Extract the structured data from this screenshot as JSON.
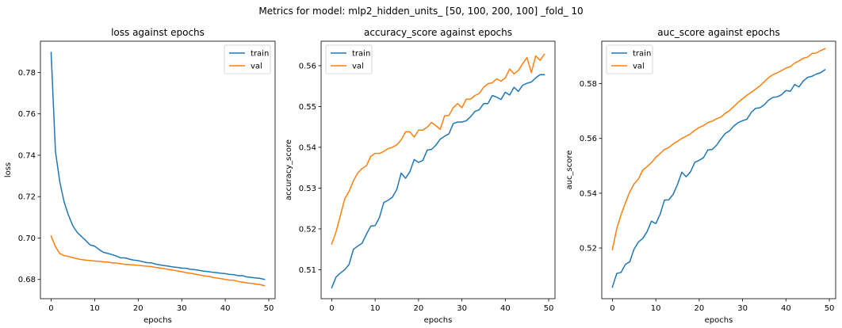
{
  "figure_title": "Metrics for model: mlp2_hidden_units_ [50, 100, 200, 100] _fold_ 10",
  "colors": {
    "train": "#1f77b4",
    "val": "#ff7f0e"
  },
  "chart_data": [
    {
      "type": "line",
      "title": "loss against epochs",
      "xlabel": "epochs",
      "ylabel": "loss",
      "xlim": [
        -2.45,
        51.45
      ],
      "ylim": [
        0.6707,
        0.7951
      ],
      "xticks": [
        0,
        10,
        20,
        30,
        40,
        50
      ],
      "yticks": [
        0.68,
        0.7,
        0.72,
        0.74,
        0.76,
        0.78
      ],
      "ytick_labels": [
        "0.68",
        "0.70",
        "0.72",
        "0.74",
        "0.76",
        "0.78"
      ],
      "grid": false,
      "legend": "upper right",
      "series": [
        {
          "name": "train",
          "values": [
            0.7897,
            0.7418,
            0.7271,
            0.7173,
            0.711,
            0.7059,
            0.7027,
            0.7007,
            0.6987,
            0.6966,
            0.6961,
            0.6945,
            0.6931,
            0.6926,
            0.692,
            0.6913,
            0.6904,
            0.6904,
            0.6898,
            0.6893,
            0.6891,
            0.6886,
            0.6881,
            0.688,
            0.6874,
            0.687,
            0.6867,
            0.6864,
            0.686,
            0.6858,
            0.6855,
            0.6854,
            0.6849,
            0.6847,
            0.6844,
            0.684,
            0.6838,
            0.6835,
            0.6833,
            0.683,
            0.6828,
            0.6824,
            0.6823,
            0.6818,
            0.6818,
            0.6812,
            0.681,
            0.6807,
            0.6805,
            0.68
          ]
        },
        {
          "name": "val",
          "values": [
            0.701,
            0.6958,
            0.6925,
            0.6915,
            0.6911,
            0.6905,
            0.69,
            0.6896,
            0.6893,
            0.6891,
            0.6889,
            0.6888,
            0.6885,
            0.6884,
            0.688,
            0.6879,
            0.6876,
            0.6873,
            0.6872,
            0.687,
            0.6868,
            0.6866,
            0.6864,
            0.6862,
            0.6858,
            0.6855,
            0.6852,
            0.6848,
            0.6845,
            0.6841,
            0.6837,
            0.6833,
            0.683,
            0.6826,
            0.6822,
            0.6818,
            0.6815,
            0.6811,
            0.6807,
            0.6804,
            0.68,
            0.6797,
            0.6796,
            0.679,
            0.6787,
            0.6783,
            0.6781,
            0.6778,
            0.6775,
            0.677
          ]
        }
      ]
    },
    {
      "type": "line",
      "title": "accuracy_score against epochs",
      "xlabel": "epochs",
      "ylabel": "accuracy_score",
      "xlim": [
        -2.45,
        51.45
      ],
      "ylim": [
        0.5029,
        0.566
      ],
      "xticks": [
        0,
        10,
        20,
        30,
        40,
        50
      ],
      "yticks": [
        0.51,
        0.52,
        0.53,
        0.54,
        0.55,
        0.56
      ],
      "ytick_labels": [
        "0.51",
        "0.52",
        "0.53",
        "0.54",
        "0.55",
        "0.56"
      ],
      "grid": false,
      "legend": "upper left",
      "series": [
        {
          "name": "train",
          "values": [
            0.5056,
            0.5082,
            0.5092,
            0.51,
            0.5113,
            0.515,
            0.5158,
            0.5165,
            0.5187,
            0.5207,
            0.5208,
            0.5228,
            0.5265,
            0.527,
            0.5278,
            0.5297,
            0.5337,
            0.5324,
            0.534,
            0.537,
            0.5363,
            0.5368,
            0.5393,
            0.5395,
            0.5405,
            0.542,
            0.5427,
            0.5433,
            0.5458,
            0.5462,
            0.5462,
            0.5465,
            0.5475,
            0.5488,
            0.5492,
            0.5507,
            0.5507,
            0.5527,
            0.5523,
            0.5517,
            0.5535,
            0.5528,
            0.5547,
            0.5537,
            0.5552,
            0.5557,
            0.556,
            0.557,
            0.5578,
            0.5578
          ]
        },
        {
          "name": "val",
          "values": [
            0.5163,
            0.5193,
            0.5233,
            0.5274,
            0.5292,
            0.5318,
            0.5337,
            0.5348,
            0.5355,
            0.5378,
            0.5385,
            0.5385,
            0.539,
            0.5397,
            0.54,
            0.5406,
            0.5418,
            0.5438,
            0.5438,
            0.5425,
            0.5442,
            0.5442,
            0.5449,
            0.5461,
            0.5453,
            0.5444,
            0.5477,
            0.5478,
            0.5497,
            0.5507,
            0.5497,
            0.5518,
            0.5518,
            0.5527,
            0.5532,
            0.5547,
            0.5556,
            0.5558,
            0.5568,
            0.5562,
            0.557,
            0.5592,
            0.558,
            0.5588,
            0.5605,
            0.562,
            0.5583,
            0.5624,
            0.5613,
            0.5628
          ]
        }
      ]
    },
    {
      "type": "line",
      "title": "auc_score against epochs",
      "xlabel": "epochs",
      "ylabel": "auc_score",
      "xlim": [
        -2.45,
        51.45
      ],
      "ylim": [
        0.5015,
        0.5955
      ],
      "xticks": [
        0,
        10,
        20,
        30,
        40,
        50
      ],
      "yticks": [
        0.52,
        0.54,
        0.56,
        0.58
      ],
      "ytick_labels": [
        "0.52",
        "0.54",
        "0.56",
        "0.58"
      ],
      "grid": false,
      "legend": "upper left",
      "series": [
        {
          "name": "train",
          "values": [
            0.5057,
            0.5107,
            0.5111,
            0.514,
            0.515,
            0.5196,
            0.5222,
            0.5235,
            0.526,
            0.5298,
            0.5289,
            0.5323,
            0.5375,
            0.5376,
            0.5396,
            0.5432,
            0.5477,
            0.546,
            0.5478,
            0.5513,
            0.552,
            0.553,
            0.5558,
            0.556,
            0.5575,
            0.5598,
            0.5618,
            0.5628,
            0.5646,
            0.5658,
            0.5665,
            0.567,
            0.5695,
            0.571,
            0.5712,
            0.5723,
            0.574,
            0.575,
            0.5752,
            0.576,
            0.5775,
            0.5772,
            0.5797,
            0.5788,
            0.581,
            0.5823,
            0.5827,
            0.5835,
            0.584,
            0.5851
          ]
        },
        {
          "name": "val",
          "values": [
            0.5194,
            0.5271,
            0.5322,
            0.5365,
            0.5405,
            0.5434,
            0.5452,
            0.5485,
            0.5497,
            0.5512,
            0.5531,
            0.5545,
            0.556,
            0.5567,
            0.558,
            0.559,
            0.56,
            0.5608,
            0.5617,
            0.563,
            0.564,
            0.5647,
            0.5658,
            0.5663,
            0.5672,
            0.5678,
            0.5692,
            0.5702,
            0.5717,
            0.5732,
            0.5745,
            0.5758,
            0.5768,
            0.578,
            0.5792,
            0.5807,
            0.5822,
            0.5833,
            0.584,
            0.5848,
            0.5857,
            0.5862,
            0.5875,
            0.5883,
            0.5893,
            0.5897,
            0.591,
            0.5912,
            0.5921,
            0.5928
          ]
        }
      ]
    }
  ]
}
